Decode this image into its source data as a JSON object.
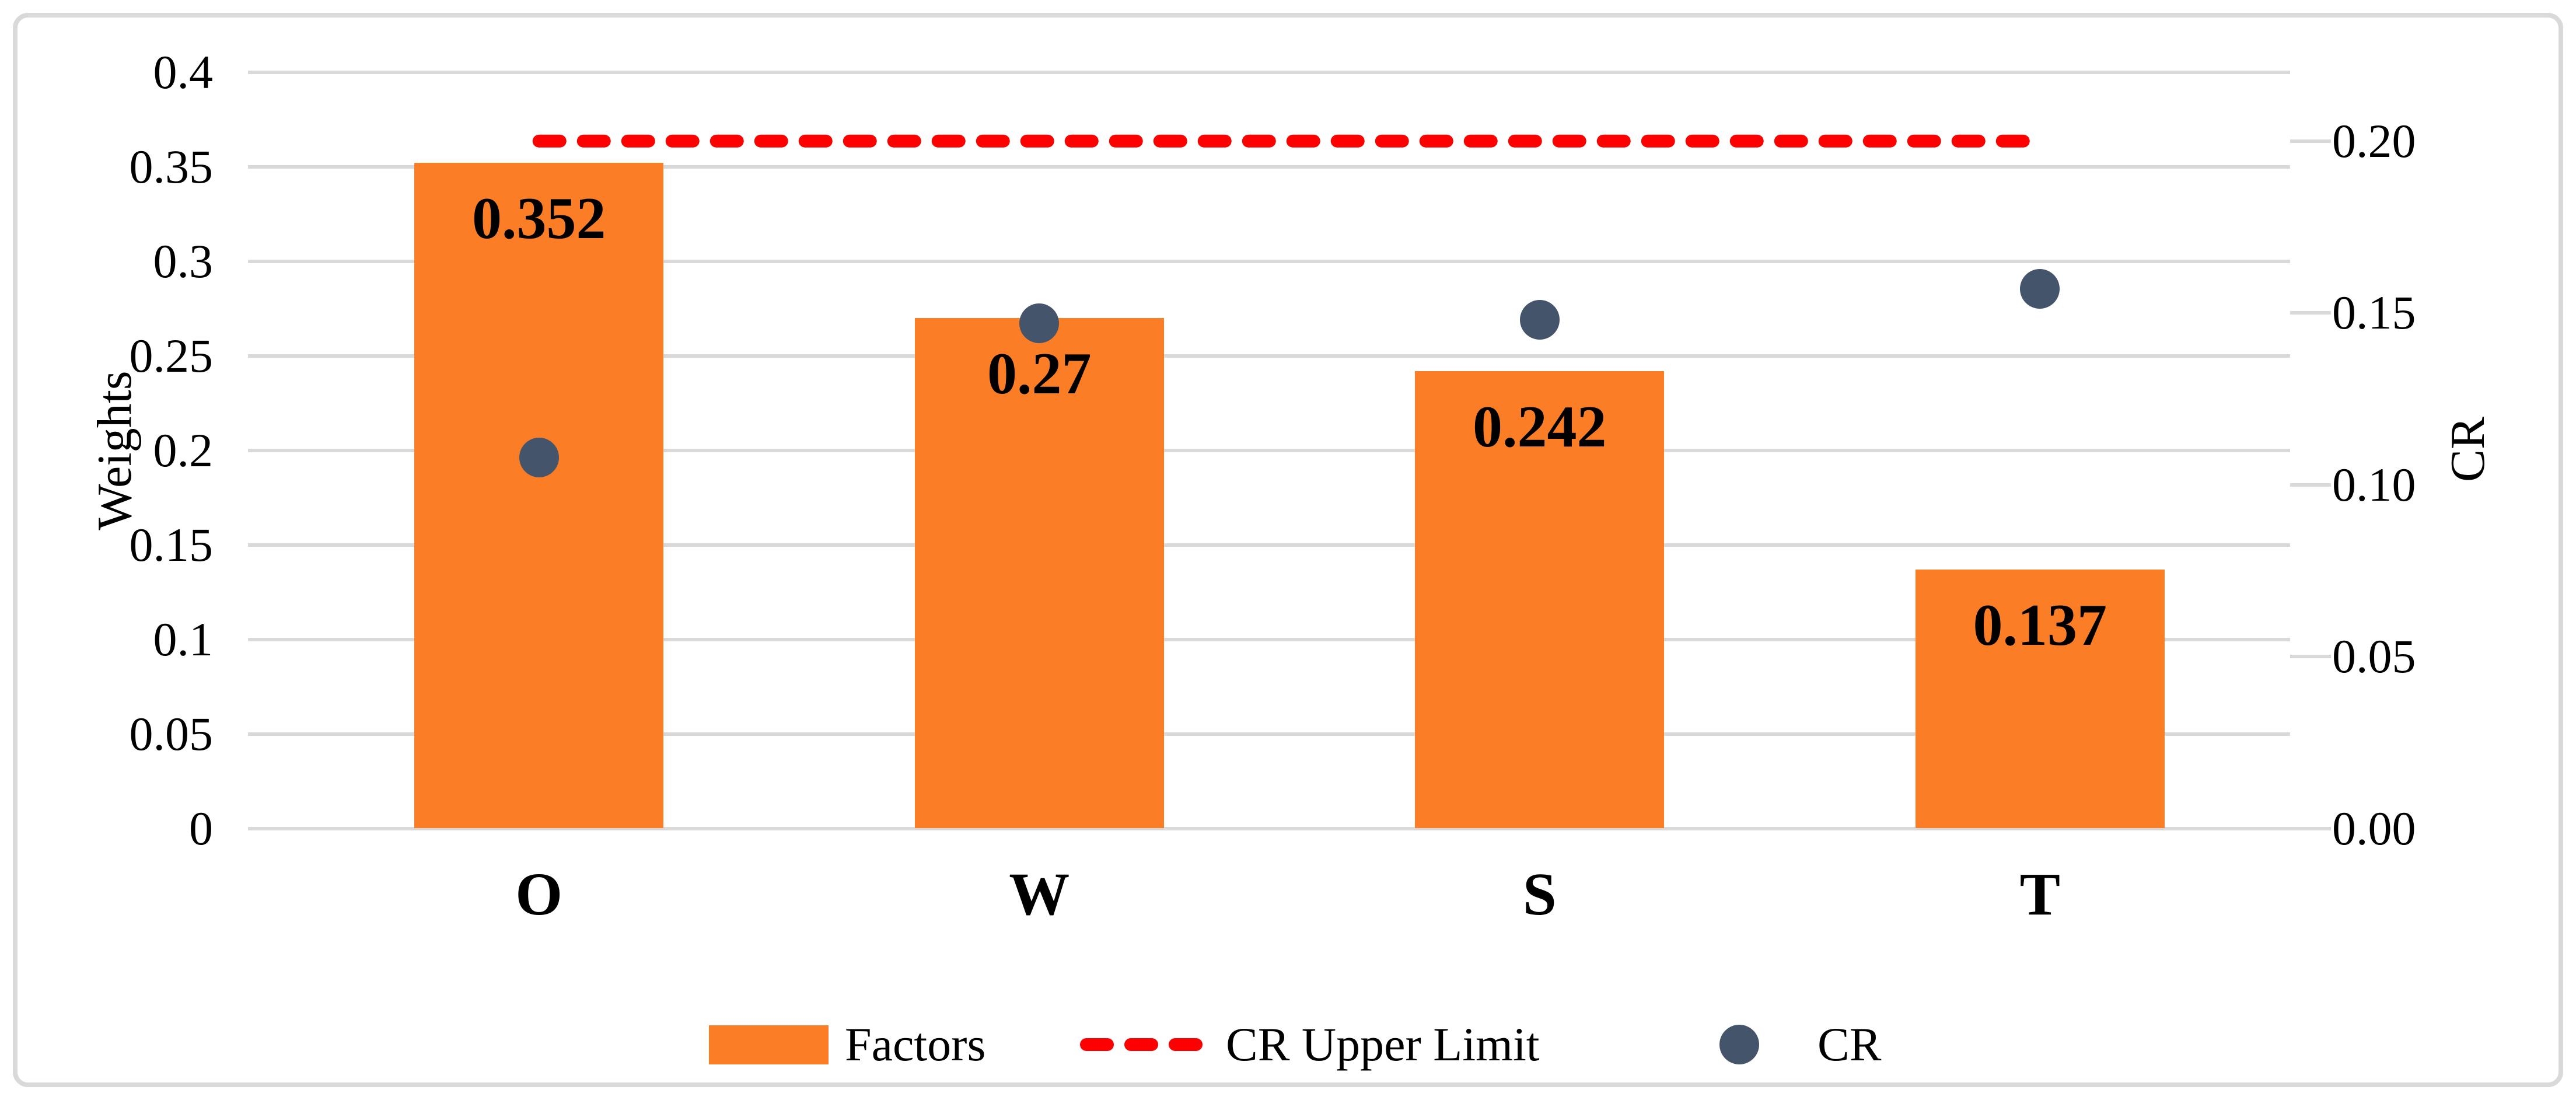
{
  "colors": {
    "bar": "#FB7D25",
    "dashed_line": "#FF0000",
    "scatter": "#44546A",
    "gridline": "#D9D9D9",
    "figure_border": "#D9D9D9",
    "text": "#000000",
    "background": "#FFFFFF"
  },
  "chart_data": {
    "type": "combo-bar-scatter-dual-axis",
    "categories": [
      "O",
      "W",
      "S",
      "T"
    ],
    "series": [
      {
        "name": "Factors",
        "type": "bar",
        "axis": "left",
        "color": "#FB7D25",
        "values": [
          0.352,
          0.27,
          0.242,
          0.137
        ],
        "data_labels": [
          "0.352",
          "0.27",
          "0.242",
          "0.137"
        ]
      },
      {
        "name": "CR Upper Limit",
        "type": "dashed-line",
        "axis": "right",
        "color": "#FF0000",
        "value": 0.2
      },
      {
        "name": "CR",
        "type": "scatter",
        "axis": "right",
        "color": "#44546A",
        "values": [
          0.108,
          0.147,
          0.148,
          0.157
        ]
      }
    ],
    "left_axis": {
      "label": "Weights",
      "min": 0,
      "max": 0.4,
      "tick_labels": [
        "0.4",
        "0.35",
        "0.3",
        "0.25",
        "0.2",
        "0.15",
        "0.1",
        "0.05",
        "0"
      ],
      "tick_values": [
        0.4,
        0.35,
        0.3,
        0.25,
        0.2,
        0.15,
        0.1,
        0.05,
        0
      ]
    },
    "right_axis": {
      "label": "CR",
      "min": 0,
      "max": 0.22,
      "tick_labels": [
        "0.20",
        "0.15",
        "0.10",
        "0.05",
        "0.00"
      ],
      "tick_values": [
        0.2,
        0.15,
        0.1,
        0.05,
        0
      ]
    },
    "gridlines": true,
    "legend_position": "bottom"
  }
}
